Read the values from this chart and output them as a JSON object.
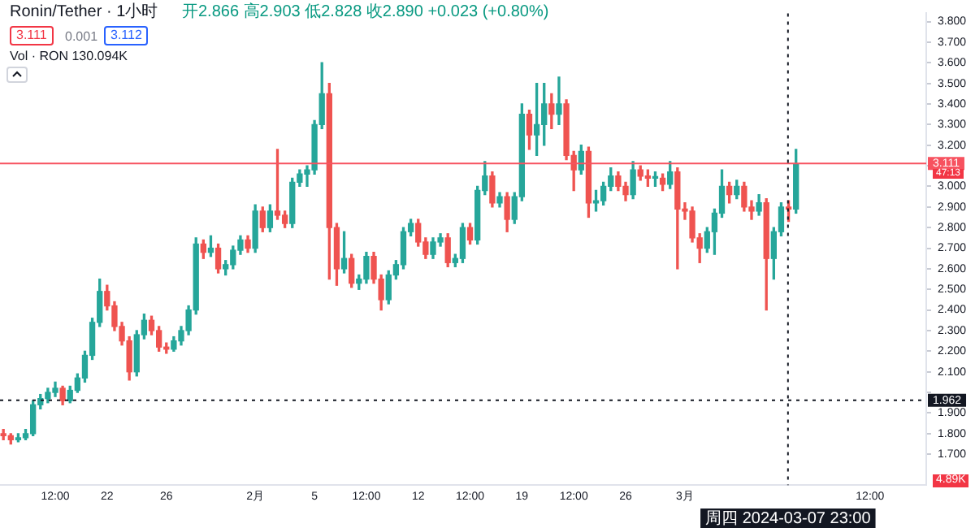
{
  "chart_data": {
    "type": "candlestick",
    "title": "Ronin/Tether · 1小时",
    "annotations": [
      "开2.866 高2.903 低2.828 收2.890 +0.023 (+0.80%)",
      "3.111",
      "0.001",
      "3.112",
      "Vol · RON 130.094K",
      "47:13",
      "4.89K"
    ],
    "x": [
      "2024-01-15T00:00",
      "2024-01-15T12:00",
      "2024-01-16T00:00",
      "2024-01-16T12:00",
      "2024-01-17T00:00",
      "2024-01-17T12:00",
      "2024-01-18T00:00",
      "2024-01-18T12:00",
      "2024-01-19T00:00",
      "2024-01-19T12:00",
      "2024-01-20T00:00",
      "2024-01-20T12:00",
      "2024-01-21T00:00",
      "2024-01-21T12:00",
      "2024-01-22T00:00",
      "2024-01-22T12:00",
      "2024-01-23T00:00",
      "2024-01-23T12:00",
      "2024-01-24T00:00",
      "2024-01-24T12:00",
      "2024-01-25T00:00",
      "2024-01-25T12:00",
      "2024-01-26T00:00",
      "2024-01-26T12:00",
      "2024-01-27T00:00",
      "2024-01-27T12:00",
      "2024-01-28T00:00",
      "2024-01-28T12:00",
      "2024-01-29T00:00",
      "2024-01-29T12:00",
      "2024-01-30T00:00",
      "2024-01-30T12:00",
      "2024-01-31T00:00",
      "2024-01-31T12:00",
      "2024-02-01T00:00",
      "2024-02-01T12:00",
      "2024-02-02T00:00",
      "2024-02-02T12:00",
      "2024-02-03T00:00",
      "2024-02-03T12:00",
      "2024-02-04T00:00",
      "2024-02-04T12:00",
      "2024-02-05T00:00",
      "2024-02-05T12:00",
      "2024-02-06T00:00",
      "2024-02-06T12:00",
      "2024-02-07T00:00",
      "2024-02-07T12:00",
      "2024-02-08T00:00",
      "2024-02-08T12:00",
      "2024-02-09T00:00",
      "2024-02-09T12:00",
      "2024-02-10T00:00",
      "2024-02-10T12:00",
      "2024-02-11T00:00",
      "2024-02-11T12:00",
      "2024-02-12T00:00",
      "2024-02-12T12:00",
      "2024-02-13T00:00",
      "2024-02-13T12:00",
      "2024-02-14T00:00",
      "2024-02-14T12:00",
      "2024-02-15T00:00",
      "2024-02-15T12:00",
      "2024-02-16T00:00",
      "2024-02-16T12:00",
      "2024-02-17T00:00",
      "2024-02-17T12:00",
      "2024-02-18T00:00",
      "2024-02-18T12:00",
      "2024-02-19T00:00",
      "2024-02-19T12:00",
      "2024-02-20T00:00",
      "2024-02-20T12:00",
      "2024-02-21T00:00",
      "2024-02-21T12:00",
      "2024-02-22T00:00",
      "2024-02-22T12:00",
      "2024-02-23T00:00",
      "2024-02-23T12:00",
      "2024-02-24T00:00",
      "2024-02-24T12:00",
      "2024-02-25T00:00",
      "2024-02-25T12:00",
      "2024-02-26T00:00",
      "2024-02-26T12:00",
      "2024-02-27T00:00",
      "2024-02-27T12:00",
      "2024-02-28T00:00",
      "2024-02-28T12:00",
      "2024-02-29T00:00",
      "2024-02-29T12:00",
      "2024-03-01T00:00",
      "2024-03-01T12:00",
      "2024-03-02T00:00",
      "2024-03-02T12:00",
      "2024-03-03T00:00",
      "2024-03-03T12:00",
      "2024-03-04T00:00",
      "2024-03-04T12:00",
      "2024-03-05T00:00",
      "2024-03-05T12:00",
      "2024-03-06T00:00",
      "2024-03-06T12:00",
      "2024-03-07T00:00",
      "2024-03-07T12:00",
      "2024-03-08T00:00",
      "2024-03-08T12:00"
    ],
    "ohlc": [
      [
        1.8,
        1.82,
        1.77,
        1.79
      ],
      [
        1.79,
        1.8,
        1.75,
        1.77
      ],
      [
        1.77,
        1.8,
        1.76,
        1.78
      ],
      [
        1.78,
        1.82,
        1.77,
        1.8
      ],
      [
        1.8,
        1.96,
        1.79,
        1.94
      ],
      [
        1.94,
        1.99,
        1.92,
        1.97
      ],
      [
        1.97,
        2.02,
        1.95,
        2.0
      ],
      [
        2.0,
        2.05,
        1.98,
        2.02
      ],
      [
        2.02,
        2.03,
        1.94,
        1.96
      ],
      [
        1.96,
        2.03,
        1.95,
        2.01
      ],
      [
        2.01,
        2.09,
        2.0,
        2.07
      ],
      [
        2.07,
        2.2,
        2.05,
        2.18
      ],
      [
        2.18,
        2.36,
        2.16,
        2.34
      ],
      [
        2.34,
        2.55,
        2.32,
        2.49
      ],
      [
        2.49,
        2.52,
        2.4,
        2.42
      ],
      [
        2.42,
        2.44,
        2.3,
        2.32
      ],
      [
        2.32,
        2.34,
        2.23,
        2.25
      ],
      [
        2.25,
        2.27,
        2.06,
        2.1
      ],
      [
        2.1,
        2.3,
        2.08,
        2.28
      ],
      [
        2.28,
        2.38,
        2.26,
        2.35
      ],
      [
        2.35,
        2.37,
        2.28,
        2.3
      ],
      [
        2.3,
        2.32,
        2.2,
        2.22
      ],
      [
        2.22,
        2.24,
        2.19,
        2.21
      ],
      [
        2.21,
        2.27,
        2.2,
        2.25
      ],
      [
        2.25,
        2.32,
        2.23,
        2.3
      ],
      [
        2.3,
        2.42,
        2.28,
        2.4
      ],
      [
        2.4,
        2.75,
        2.38,
        2.72
      ],
      [
        2.72,
        2.74,
        2.65,
        2.68
      ],
      [
        2.68,
        2.76,
        2.66,
        2.7
      ],
      [
        2.7,
        2.72,
        2.58,
        2.6
      ],
      [
        2.6,
        2.64,
        2.57,
        2.62
      ],
      [
        2.62,
        2.71,
        2.6,
        2.69
      ],
      [
        2.69,
        2.76,
        2.67,
        2.74
      ],
      [
        2.74,
        2.76,
        2.68,
        2.7
      ],
      [
        2.7,
        2.91,
        2.68,
        2.88
      ],
      [
        2.88,
        2.9,
        2.78,
        2.8
      ],
      [
        2.8,
        2.91,
        2.78,
        2.88
      ],
      [
        2.88,
        3.18,
        2.84,
        2.86
      ],
      [
        2.86,
        2.88,
        2.8,
        2.82
      ],
      [
        2.82,
        3.04,
        2.8,
        3.02
      ],
      [
        3.02,
        3.08,
        3.0,
        3.06
      ],
      [
        3.06,
        3.1,
        3.0,
        3.08
      ],
      [
        3.08,
        3.32,
        3.06,
        3.3
      ],
      [
        3.3,
        3.6,
        3.28,
        3.45
      ],
      [
        3.45,
        3.5,
        2.55,
        2.8
      ],
      [
        2.8,
        2.82,
        2.52,
        2.6
      ],
      [
        2.6,
        2.78,
        2.58,
        2.65
      ],
      [
        2.65,
        2.67,
        2.51,
        2.53
      ],
      [
        2.53,
        2.57,
        2.5,
        2.55
      ],
      [
        2.55,
        2.68,
        2.53,
        2.66
      ],
      [
        2.66,
        2.68,
        2.53,
        2.55
      ],
      [
        2.55,
        2.57,
        2.4,
        2.45
      ],
      [
        2.45,
        2.59,
        2.43,
        2.57
      ],
      [
        2.57,
        2.64,
        2.55,
        2.62
      ],
      [
        2.62,
        2.8,
        2.6,
        2.78
      ],
      [
        2.78,
        2.84,
        2.76,
        2.82
      ],
      [
        2.82,
        2.84,
        2.71,
        2.73
      ],
      [
        2.73,
        2.75,
        2.65,
        2.67
      ],
      [
        2.67,
        2.75,
        2.65,
        2.73
      ],
      [
        2.73,
        2.77,
        2.71,
        2.75
      ],
      [
        2.75,
        2.77,
        2.61,
        2.63
      ],
      [
        2.63,
        2.67,
        2.61,
        2.65
      ],
      [
        2.65,
        2.82,
        2.63,
        2.8
      ],
      [
        2.8,
        2.82,
        2.72,
        2.74
      ],
      [
        2.74,
        3.0,
        2.72,
        2.98
      ],
      [
        2.98,
        3.12,
        2.96,
        3.05
      ],
      [
        3.05,
        3.07,
        2.9,
        2.92
      ],
      [
        2.92,
        2.97,
        2.9,
        2.95
      ],
      [
        2.95,
        2.97,
        2.78,
        2.84
      ],
      [
        2.84,
        2.97,
        2.82,
        2.95
      ],
      [
        2.95,
        3.4,
        2.93,
        3.35
      ],
      [
        3.35,
        3.37,
        3.18,
        3.25
      ],
      [
        3.25,
        3.5,
        3.15,
        3.3
      ],
      [
        3.3,
        3.5,
        3.2,
        3.4
      ],
      [
        3.4,
        3.45,
        3.28,
        3.35
      ],
      [
        3.35,
        3.53,
        3.3,
        3.4
      ],
      [
        3.4,
        3.42,
        3.13,
        3.15
      ],
      [
        3.15,
        3.17,
        2.98,
        3.08
      ],
      [
        3.08,
        3.2,
        3.06,
        3.17
      ],
      [
        3.17,
        3.19,
        2.85,
        2.92
      ],
      [
        2.92,
        2.98,
        2.88,
        2.93
      ],
      [
        2.93,
        3.02,
        2.91,
        3.0
      ],
      [
        3.0,
        3.09,
        2.98,
        3.05
      ],
      [
        3.05,
        3.07,
        2.98,
        3.0
      ],
      [
        3.0,
        3.02,
        2.93,
        2.96
      ],
      [
        2.96,
        3.12,
        2.94,
        3.08
      ],
      [
        3.08,
        3.1,
        3.03,
        3.05
      ],
      [
        3.05,
        3.08,
        3.0,
        3.04
      ],
      [
        3.04,
        3.07,
        3.0,
        3.04
      ],
      [
        3.04,
        3.06,
        2.98,
        3.01
      ],
      [
        3.01,
        3.12,
        2.99,
        3.07
      ],
      [
        3.07,
        3.09,
        2.6,
        2.89
      ],
      [
        2.89,
        2.92,
        2.84,
        2.88
      ],
      [
        2.88,
        2.9,
        2.73,
        2.75
      ],
      [
        2.75,
        2.77,
        2.63,
        2.7
      ],
      [
        2.7,
        2.8,
        2.68,
        2.78
      ],
      [
        2.78,
        2.89,
        2.67,
        2.87
      ],
      [
        2.87,
        3.08,
        2.85,
        3.0
      ],
      [
        3.0,
        3.02,
        2.92,
        2.96
      ],
      [
        2.96,
        3.03,
        2.94,
        3.0
      ],
      [
        3.0,
        3.02,
        2.88,
        2.9
      ],
      [
        2.9,
        2.93,
        2.84,
        2.88
      ],
      [
        2.88,
        2.96,
        2.86,
        2.92
      ],
      [
        2.92,
        2.94,
        2.4,
        2.65
      ],
      [
        2.65,
        2.8,
        2.55,
        2.78
      ],
      [
        2.78,
        2.92,
        2.76,
        2.9
      ],
      [
        2.9,
        2.93,
        2.83,
        2.89
      ],
      [
        2.89,
        3.18,
        2.87,
        3.11
      ]
    ],
    "colors": [
      "#ef5350",
      "#ef5350",
      "#26a69a",
      "#26a69a",
      "#26a69a",
      "#26a69a",
      "#26a69a",
      "#26a69a",
      "#ef5350",
      "#26a69a",
      "#26a69a",
      "#26a69a",
      "#26a69a",
      "#26a69a",
      "#ef5350",
      "#ef5350",
      "#ef5350",
      "#ef5350",
      "#26a69a",
      "#26a69a",
      "#ef5350",
      "#ef5350",
      "#ef5350",
      "#26a69a",
      "#26a69a",
      "#26a69a",
      "#26a69a",
      "#ef5350",
      "#26a69a",
      "#ef5350",
      "#26a69a",
      "#26a69a",
      "#26a69a",
      "#ef5350",
      "#26a69a",
      "#ef5350",
      "#26a69a",
      "#ef5350",
      "#ef5350",
      "#26a69a",
      "#26a69a",
      "#26a69a",
      "#26a69a",
      "#26a69a",
      "#ef5350",
      "#ef5350",
      "#26a69a",
      "#ef5350",
      "#26a69a",
      "#26a69a",
      "#ef5350",
      "#ef5350",
      "#26a69a",
      "#26a69a",
      "#26a69a",
      "#26a69a",
      "#ef5350",
      "#ef5350",
      "#26a69a",
      "#26a69a",
      "#ef5350",
      "#26a69a",
      "#26a69a",
      "#ef5350",
      "#26a69a",
      "#26a69a",
      "#ef5350",
      "#26a69a",
      "#ef5350",
      "#26a69a",
      "#26a69a",
      "#ef5350",
      "#26a69a",
      "#26a69a",
      "#ef5350",
      "#26a69a",
      "#ef5350",
      "#ef5350",
      "#26a69a",
      "#ef5350",
      "#26a69a",
      "#26a69a",
      "#26a69a",
      "#ef5350",
      "#ef5350",
      "#26a69a",
      "#ef5350",
      "#ef5350",
      "#26a69a",
      "#ef5350",
      "#26a69a",
      "#ef5350",
      "#ef5350",
      "#ef5350",
      "#ef5350",
      "#26a69a",
      "#26a69a",
      "#26a69a",
      "#ef5350",
      "#26a69a",
      "#ef5350",
      "#ef5350",
      "#26a69a",
      "#ef5350",
      "#26a69a",
      "#26a69a",
      "#ef5350",
      "#26a69a"
    ],
    "xlim": [
      "2024-01-14T18:30",
      "2024-03-17T07:00"
    ],
    "xticks": [
      {
        "value": "2024-01-18T12:00",
        "label": "12:00"
      },
      {
        "value": "2024-01-22T00:00",
        "label": "22"
      },
      {
        "value": "2024-01-26T00:00",
        "label": "26"
      },
      {
        "value": "2024-02-01T00:00",
        "label": "2月"
      },
      {
        "value": "2024-02-05T00:00",
        "label": "5"
      },
      {
        "value": "2024-02-08T12:00",
        "label": "12:00"
      },
      {
        "value": "2024-02-12T00:00",
        "label": "12"
      },
      {
        "value": "2024-02-15T12:00",
        "label": "12:00"
      },
      {
        "value": "2024-02-19T00:00",
        "label": "19"
      },
      {
        "value": "2024-02-22T12:00",
        "label": "12:00"
      },
      {
        "value": "2024-02-26T00:00",
        "label": "26"
      },
      {
        "value": "2024-03-01T00:00",
        "label": "3月"
      },
      {
        "value": "2024-03-13T12:00",
        "label": "12:00"
      }
    ],
    "ylim": [
      1.55,
      3.84
    ],
    "yticks": [
      {
        "value": 1.7,
        "label": "1.700"
      },
      {
        "value": 1.8,
        "label": "1.800"
      },
      {
        "value": 1.9,
        "label": "1.900"
      },
      {
        "value": 2.0,
        "label": null
      },
      {
        "value": 2.1,
        "label": "2.100"
      },
      {
        "value": 2.2,
        "label": "2.200"
      },
      {
        "value": 2.3,
        "label": "2.300"
      },
      {
        "value": 2.4,
        "label": "2.400"
      },
      {
        "value": 2.5,
        "label": "2.500"
      },
      {
        "value": 2.6,
        "label": "2.600"
      },
      {
        "value": 2.7,
        "label": "2.700"
      },
      {
        "value": 2.8,
        "label": "2.800"
      },
      {
        "value": 2.9,
        "label": "2.900"
      },
      {
        "value": 3.0,
        "label": "3.000"
      },
      {
        "value": 3.1,
        "label": null
      },
      {
        "value": 3.2,
        "label": "3.200"
      },
      {
        "value": 3.3,
        "label": "3.300"
      },
      {
        "value": 3.4,
        "label": "3.400"
      },
      {
        "value": 3.5,
        "label": "3.500"
      },
      {
        "value": 3.6,
        "label": "3.600"
      },
      {
        "value": 3.7,
        "label": "3.700"
      },
      {
        "value": 3.8,
        "label": "3.800"
      }
    ],
    "ref_lines": [
      {
        "axis": "y",
        "value": 3.111,
        "label": "3.111",
        "color": "#f7525f",
        "line_style": "solid"
      },
      {
        "axis": "y",
        "value": 1.962,
        "label": "1.962",
        "color": "#131722",
        "line_style": "dotted"
      },
      {
        "axis": "x",
        "value": "2024-03-07T23:00",
        "label": "周四 2024-03-07 23:00",
        "color": "#131722",
        "line_style": "dotted"
      }
    ]
  }
}
